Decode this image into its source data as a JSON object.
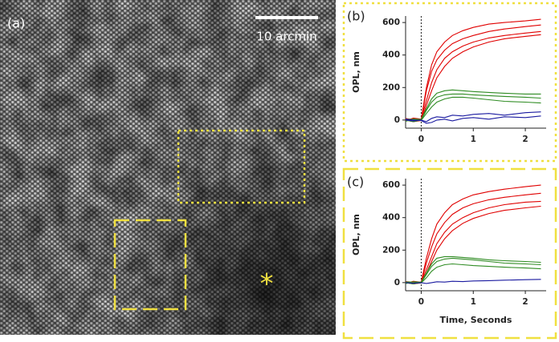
{
  "image_panel": {
    "label": "(a)",
    "scale_bar": "10 arcmin",
    "marker": "*"
  },
  "chart_data": [
    {
      "type": "line",
      "panel_label": "(b)",
      "ylabel": "OPL, nm",
      "xlim": [
        -0.3,
        2.4
      ],
      "ylim": [
        -50,
        640
      ],
      "xticks": [
        0,
        1,
        2
      ],
      "yticks": [
        0,
        200,
        400,
        600
      ],
      "vline": 0,
      "x": [
        -0.3,
        -0.15,
        0,
        0.1,
        0.2,
        0.3,
        0.45,
        0.6,
        0.8,
        1.0,
        1.3,
        1.6,
        2.0,
        2.3
      ],
      "series": [
        {
          "color": "#e00000",
          "values": [
            10,
            -8,
            0,
            180,
            300,
            370,
            430,
            470,
            500,
            520,
            545,
            560,
            575,
            585
          ]
        },
        {
          "color": "#e00000",
          "values": [
            -5,
            12,
            5,
            120,
            230,
            310,
            380,
            420,
            455,
            480,
            505,
            520,
            535,
            545
          ]
        },
        {
          "color": "#e00000",
          "values": [
            0,
            -10,
            -3,
            90,
            180,
            260,
            330,
            380,
            420,
            450,
            480,
            500,
            515,
            525
          ]
        },
        {
          "color": "#e00000",
          "values": [
            8,
            3,
            2,
            200,
            340,
            420,
            480,
            520,
            550,
            570,
            590,
            600,
            610,
            620
          ]
        },
        {
          "color": "#2e8b22",
          "values": [
            0,
            -10,
            0,
            60,
            110,
            140,
            155,
            160,
            160,
            155,
            150,
            145,
            140,
            135
          ]
        },
        {
          "color": "#2e8b22",
          "values": [
            5,
            4,
            -2,
            40,
            80,
            110,
            130,
            140,
            140,
            135,
            125,
            115,
            110,
            105
          ]
        },
        {
          "color": "#2e8b22",
          "values": [
            -8,
            6,
            3,
            70,
            130,
            165,
            180,
            185,
            180,
            175,
            170,
            165,
            160,
            160
          ]
        },
        {
          "color": "#1a1aa0",
          "values": [
            0,
            -5,
            0,
            -10,
            10,
            20,
            15,
            30,
            25,
            35,
            40,
            30,
            45,
            50
          ]
        },
        {
          "color": "#1a1aa0",
          "values": [
            5,
            0,
            -3,
            -20,
            -15,
            0,
            5,
            -5,
            10,
            15,
            5,
            20,
            15,
            25
          ]
        }
      ]
    },
    {
      "type": "line",
      "panel_label": "(c)",
      "ylabel": "OPL, nm",
      "xlabel": "Time, Seconds",
      "xlim": [
        -0.3,
        2.4
      ],
      "ylim": [
        -50,
        640
      ],
      "xticks": [
        0,
        1,
        2
      ],
      "yticks": [
        0,
        200,
        400,
        600
      ],
      "vline": 0,
      "x": [
        -0.3,
        -0.15,
        0,
        0.1,
        0.2,
        0.3,
        0.45,
        0.6,
        0.8,
        1.0,
        1.3,
        1.6,
        2.0,
        2.3
      ],
      "series": [
        {
          "color": "#e00000",
          "values": [
            5,
            -6,
            0,
            120,
            220,
            300,
            370,
            420,
            460,
            485,
            510,
            525,
            540,
            550
          ]
        },
        {
          "color": "#e00000",
          "values": [
            -5,
            8,
            2,
            80,
            160,
            240,
            310,
            360,
            400,
            430,
            460,
            480,
            495,
            500
          ]
        },
        {
          "color": "#e00000",
          "values": [
            0,
            -8,
            -2,
            60,
            130,
            200,
            270,
            320,
            365,
            395,
            425,
            445,
            460,
            470
          ]
        },
        {
          "color": "#e00000",
          "values": [
            6,
            2,
            3,
            150,
            270,
            360,
            430,
            480,
            515,
            540,
            560,
            575,
            590,
            600
          ]
        },
        {
          "color": "#2e8b22",
          "values": [
            0,
            -8,
            0,
            50,
            100,
            130,
            145,
            150,
            145,
            140,
            130,
            120,
            115,
            110
          ]
        },
        {
          "color": "#2e8b22",
          "values": [
            4,
            3,
            -2,
            30,
            70,
            95,
            110,
            115,
            110,
            105,
            100,
            95,
            90,
            85
          ]
        },
        {
          "color": "#2e8b22",
          "values": [
            -6,
            5,
            2,
            60,
            115,
            150,
            160,
            160,
            155,
            150,
            140,
            135,
            130,
            125
          ]
        },
        {
          "color": "#1a1aa0",
          "values": [
            0,
            -4,
            0,
            -5,
            0,
            5,
            3,
            8,
            6,
            10,
            12,
            15,
            18,
            20
          ]
        }
      ]
    }
  ]
}
